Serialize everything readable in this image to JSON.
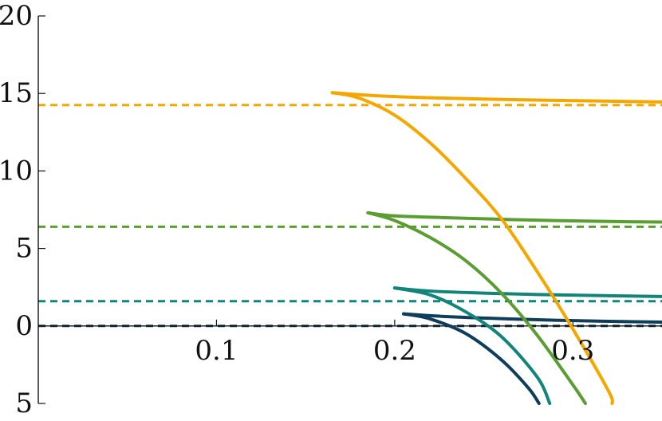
{
  "chart_data": {
    "type": "line",
    "title": "",
    "xlabel": "",
    "ylabel": "",
    "xlim": [
      0,
      0.35
    ],
    "ylim": [
      -5,
      20
    ],
    "x_ticks": [
      {
        "value": 0.1,
        "label": "0.1"
      },
      {
        "value": 0.2,
        "label": "0.2"
      },
      {
        "value": 0.3,
        "label": "0.3"
      }
    ],
    "y_ticks": [
      {
        "value": 20,
        "label": "20"
      },
      {
        "value": 15,
        "label": "15"
      },
      {
        "value": 10,
        "label": "10"
      },
      {
        "value": 5,
        "label": "5"
      },
      {
        "value": 0,
        "label": "0"
      },
      {
        "value": -5,
        "label": "5"
      }
    ],
    "grid": false,
    "legend": "none",
    "series": [
      {
        "color": "#f5a700",
        "reference_level": 14.25,
        "upper_branch": [
          [
            0.165,
            15.05
          ],
          [
            0.19,
            14.85
          ],
          [
            0.22,
            14.72
          ],
          [
            0.25,
            14.64
          ],
          [
            0.28,
            14.57
          ],
          [
            0.31,
            14.52
          ],
          [
            0.35,
            14.45
          ]
        ],
        "lower_branch": [
          [
            0.165,
            15.05
          ],
          [
            0.18,
            14.7
          ],
          [
            0.2,
            13.6
          ],
          [
            0.22,
            11.8
          ],
          [
            0.24,
            9.5
          ],
          [
            0.26,
            6.9
          ],
          [
            0.28,
            3.5
          ],
          [
            0.3,
            -0.2
          ],
          [
            0.32,
            -4.2
          ],
          [
            0.322,
            -5
          ]
        ]
      },
      {
        "color": "#5a9e32",
        "reference_level": 6.4,
        "upper_branch": [
          [
            0.185,
            7.3
          ],
          [
            0.2,
            7.1
          ],
          [
            0.23,
            6.98
          ],
          [
            0.26,
            6.88
          ],
          [
            0.29,
            6.8
          ],
          [
            0.32,
            6.74
          ],
          [
            0.35,
            6.7
          ]
        ],
        "lower_branch": [
          [
            0.185,
            7.3
          ],
          [
            0.2,
            6.8
          ],
          [
            0.22,
            5.7
          ],
          [
            0.24,
            4.2
          ],
          [
            0.26,
            2.1
          ],
          [
            0.28,
            -0.6
          ],
          [
            0.3,
            -3.8
          ],
          [
            0.307,
            -5
          ]
        ]
      },
      {
        "color": "#11857a",
        "reference_level": 1.6,
        "upper_branch": [
          [
            0.2,
            2.45
          ],
          [
            0.22,
            2.25
          ],
          [
            0.25,
            2.12
          ],
          [
            0.28,
            2.03
          ],
          [
            0.31,
            1.97
          ],
          [
            0.35,
            1.9
          ]
        ],
        "lower_branch": [
          [
            0.2,
            2.45
          ],
          [
            0.22,
            2.0
          ],
          [
            0.24,
            0.9
          ],
          [
            0.26,
            -0.7
          ],
          [
            0.28,
            -3.3
          ],
          [
            0.287,
            -5
          ]
        ]
      },
      {
        "color": "#0f3d5c",
        "reference_level": 0.0,
        "upper_branch": [
          [
            0.205,
            0.78
          ],
          [
            0.23,
            0.6
          ],
          [
            0.26,
            0.47
          ],
          [
            0.29,
            0.37
          ],
          [
            0.32,
            0.3
          ],
          [
            0.35,
            0.25
          ]
        ],
        "lower_branch": [
          [
            0.205,
            0.78
          ],
          [
            0.22,
            0.45
          ],
          [
            0.24,
            -0.5
          ],
          [
            0.26,
            -2.2
          ],
          [
            0.275,
            -4.0
          ],
          [
            0.281,
            -5
          ]
        ]
      }
    ]
  }
}
